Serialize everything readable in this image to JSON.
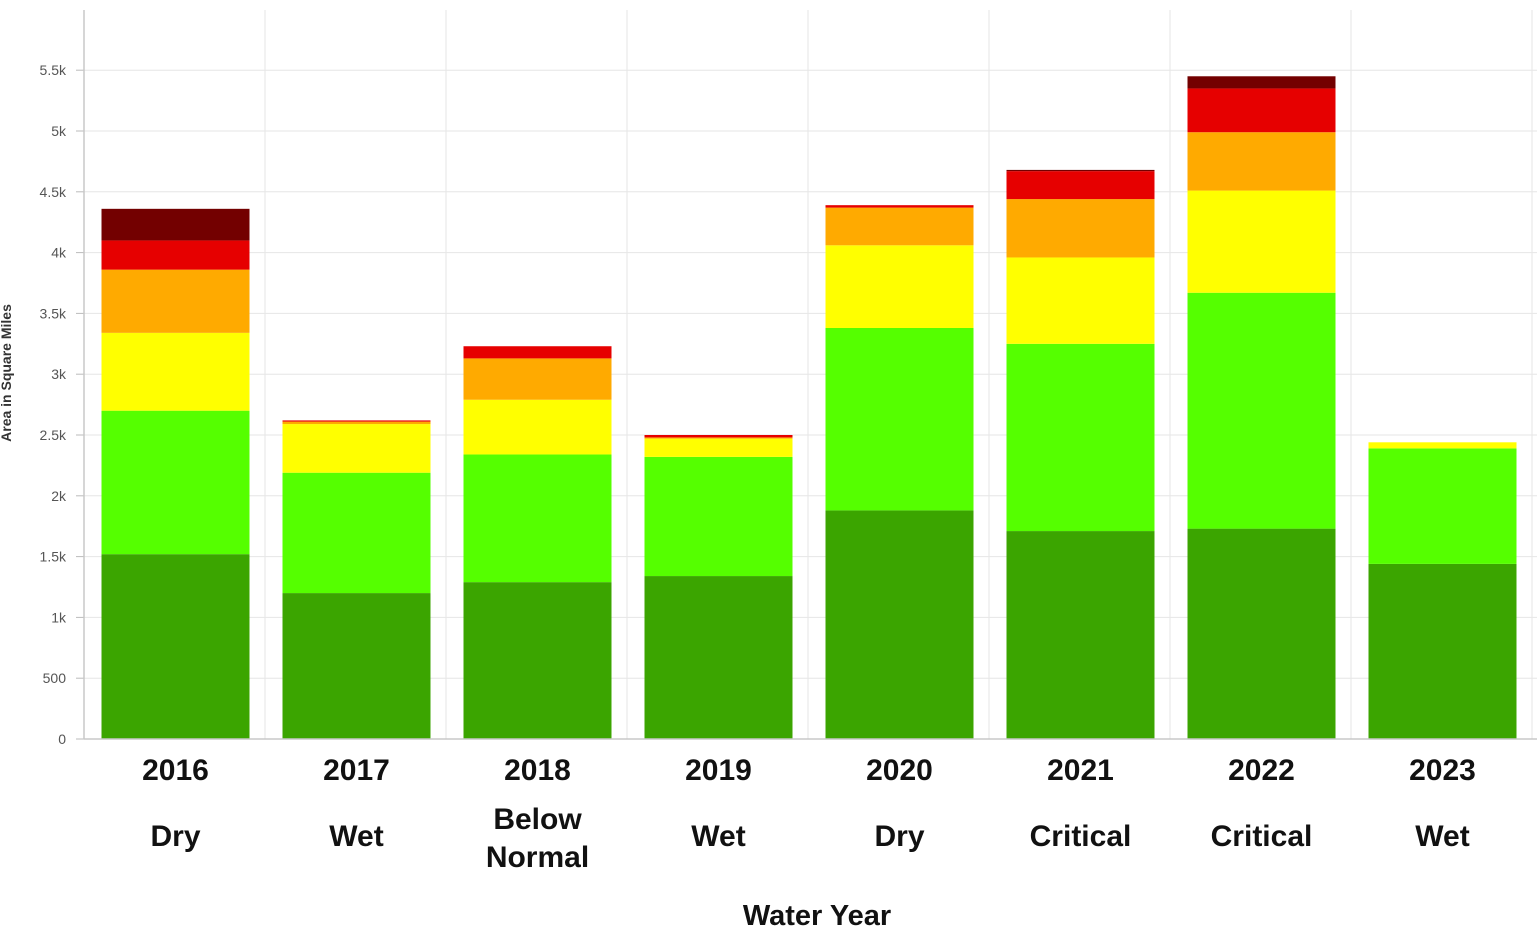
{
  "chart_data": {
    "type": "bar",
    "stacked": true,
    "title": "",
    "xlabel": "Water Year",
    "ylabel": "Area in Square Miles",
    "ylim": [
      0,
      5950
    ],
    "yticks": [
      0,
      500,
      1000,
      1500,
      2000,
      2500,
      3000,
      3500,
      4000,
      4500,
      5000,
      5500
    ],
    "ytick_labels": [
      "0",
      "500",
      "1k",
      "1.5k",
      "2k",
      "2.5k",
      "3k",
      "3.5k",
      "4k",
      "4.5k",
      "5k",
      "5.5k"
    ],
    "grid": true,
    "legend": "none",
    "categories": [
      "2016",
      "2017",
      "2018",
      "2019",
      "2020",
      "2021",
      "2022",
      "2023"
    ],
    "water_year_types": [
      [
        "Dry"
      ],
      [
        "Wet"
      ],
      [
        "Below",
        "Normal"
      ],
      [
        "Wet"
      ],
      [
        "Dry"
      ],
      [
        "Critical"
      ],
      [
        "Critical"
      ],
      [
        "Wet"
      ]
    ],
    "series": [
      {
        "color": "#3ba500",
        "values": [
          1520,
          1200,
          1290,
          1340,
          1880,
          1710,
          1730,
          1440
        ]
      },
      {
        "color": "#55ff00",
        "values": [
          1180,
          990,
          1050,
          980,
          1500,
          1540,
          1940,
          950
        ]
      },
      {
        "color": "#ffff00",
        "values": [
          640,
          400,
          450,
          150,
          680,
          710,
          840,
          50
        ]
      },
      {
        "color": "#ffaa00",
        "values": [
          520,
          20,
          340,
          10,
          310,
          480,
          480,
          0
        ]
      },
      {
        "color": "#e60000",
        "values": [
          240,
          10,
          100,
          20,
          20,
          230,
          360,
          0
        ]
      },
      {
        "color": "#730000",
        "values": [
          260,
          0,
          0,
          0,
          0,
          10,
          100,
          0
        ]
      }
    ]
  }
}
